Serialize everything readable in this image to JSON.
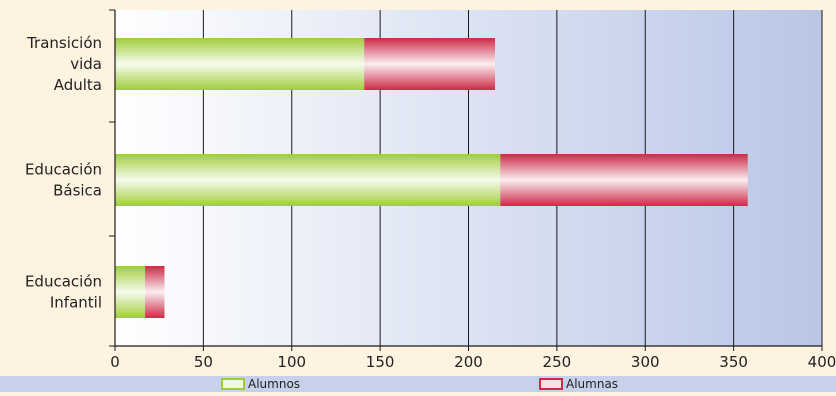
{
  "chart_data": {
    "type": "bar",
    "orientation": "horizontal",
    "stacked": true,
    "categories": [
      "Transición vida Adulta",
      "Educación Básica",
      "Educación Infantil"
    ],
    "category_label_lines": [
      [
        "Transición",
        "vida",
        "Adulta"
      ],
      [
        "Educación",
        "Básica"
      ],
      [
        "Educación",
        "Infantil"
      ]
    ],
    "series": [
      {
        "name": "Alumnos",
        "values": [
          141,
          218,
          17
        ],
        "color": "#9fcd3a"
      },
      {
        "name": "Alumnas",
        "values": [
          74,
          140,
          11
        ],
        "color": "#cc2a47"
      }
    ],
    "xlim": [
      0,
      400
    ],
    "xticks": [
      "0",
      "50",
      "100",
      "150",
      "200",
      "250",
      "300",
      "350",
      "400"
    ],
    "xlabel": "",
    "ylabel": "",
    "title": "",
    "grid": true,
    "legend_position": "bottom",
    "colors": {
      "page_background": "#fdf3e0",
      "plot_background_start": "#ffffff",
      "plot_background_end": "#b9c6e6",
      "legend_band": "#c7d1ea",
      "grid_line": "#1a1a1a"
    }
  }
}
